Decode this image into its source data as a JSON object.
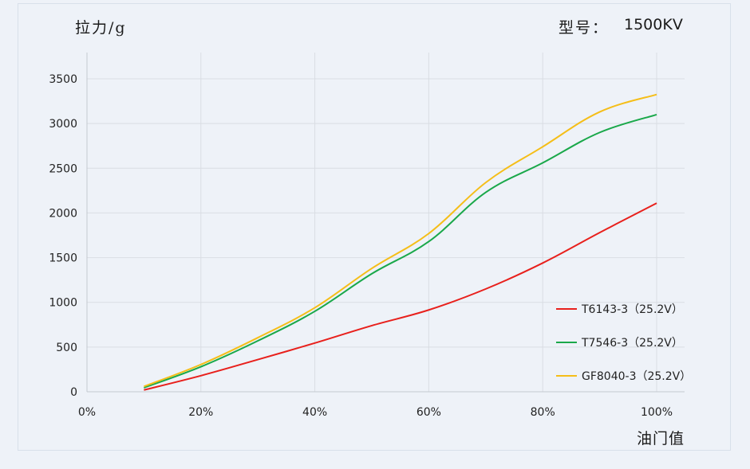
{
  "labels": {
    "ylabel": "拉力/g",
    "model_label": "型号：",
    "model_value": "1500KV",
    "xlabel": "油门值"
  },
  "chart_data": {
    "type": "line",
    "title": "",
    "xlabel": "油门值",
    "ylabel": "拉力/g",
    "x": [
      10,
      20,
      30,
      40,
      50,
      60,
      70,
      80,
      90,
      100
    ],
    "xlim": [
      0,
      100
    ],
    "ylim": [
      0,
      3500
    ],
    "x_ticks": [
      "0%",
      "20%",
      "40%",
      "60%",
      "80%",
      "100%"
    ],
    "x_tick_values": [
      0,
      20,
      40,
      60,
      80,
      100
    ],
    "y_ticks": [
      "0",
      "500",
      "1000",
      "1500",
      "2000",
      "2500",
      "3000",
      "3500"
    ],
    "y_tick_values": [
      0,
      500,
      1000,
      1500,
      2000,
      2500,
      3000,
      3500
    ],
    "grid": true,
    "legend_position": "bottom-right",
    "series": [
      {
        "name": "T6143-3（25.2V）",
        "color": "#e8201c",
        "values": [
          20,
          180,
          360,
          545,
          740,
          915,
          1150,
          1440,
          1780,
          2110
        ]
      },
      {
        "name": "T7546-3（25.2V）",
        "color": "#1aa84a",
        "values": [
          45,
          280,
          570,
          900,
          1320,
          1680,
          2230,
          2560,
          2900,
          3100
        ]
      },
      {
        "name": "GF8040-3（25.2V）",
        "color": "#f5be18",
        "values": [
          60,
          305,
          605,
          940,
          1380,
          1770,
          2340,
          2740,
          3130,
          3325
        ]
      }
    ]
  }
}
